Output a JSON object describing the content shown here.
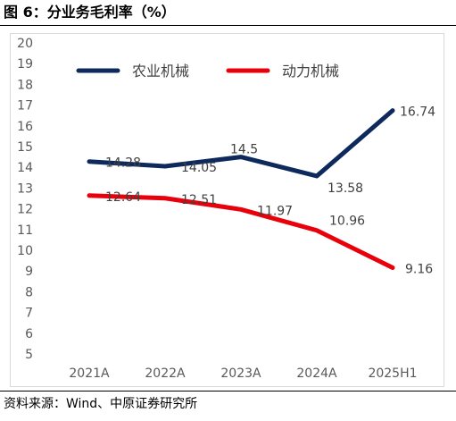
{
  "figure": {
    "title": "图 6：分业务毛利率（%）",
    "source": "资料来源：Wind、中原证券研究所"
  },
  "colors": {
    "series_1": "#0e2a5c",
    "series_2": "#e8000b",
    "axis_text": "#595959",
    "label_text": "#404040",
    "border": "#d9d9d9"
  },
  "chart_data": {
    "type": "line",
    "title": "",
    "xlabel": "",
    "ylabel": "",
    "categories": [
      "2021A",
      "2022A",
      "2023A",
      "2024A",
      "2025H1"
    ],
    "ylim": [
      5,
      20
    ],
    "y_ticks": [
      5,
      6,
      7,
      8,
      9,
      10,
      11,
      12,
      13,
      14,
      15,
      16,
      17,
      18,
      19,
      20
    ],
    "grid": false,
    "legend_position": "top",
    "series": [
      {
        "name": "农业机械",
        "values": [
          14.28,
          14.05,
          14.5,
          13.58,
          16.74
        ],
        "labels": [
          "14.28",
          "14.05",
          "14.5",
          "13.58",
          "16.74"
        ]
      },
      {
        "name": "动力机械",
        "values": [
          12.64,
          12.51,
          11.97,
          10.96,
          9.16
        ],
        "labels": [
          "12.64",
          "12.51",
          "11.97",
          "10.96",
          "9.16"
        ]
      }
    ]
  }
}
